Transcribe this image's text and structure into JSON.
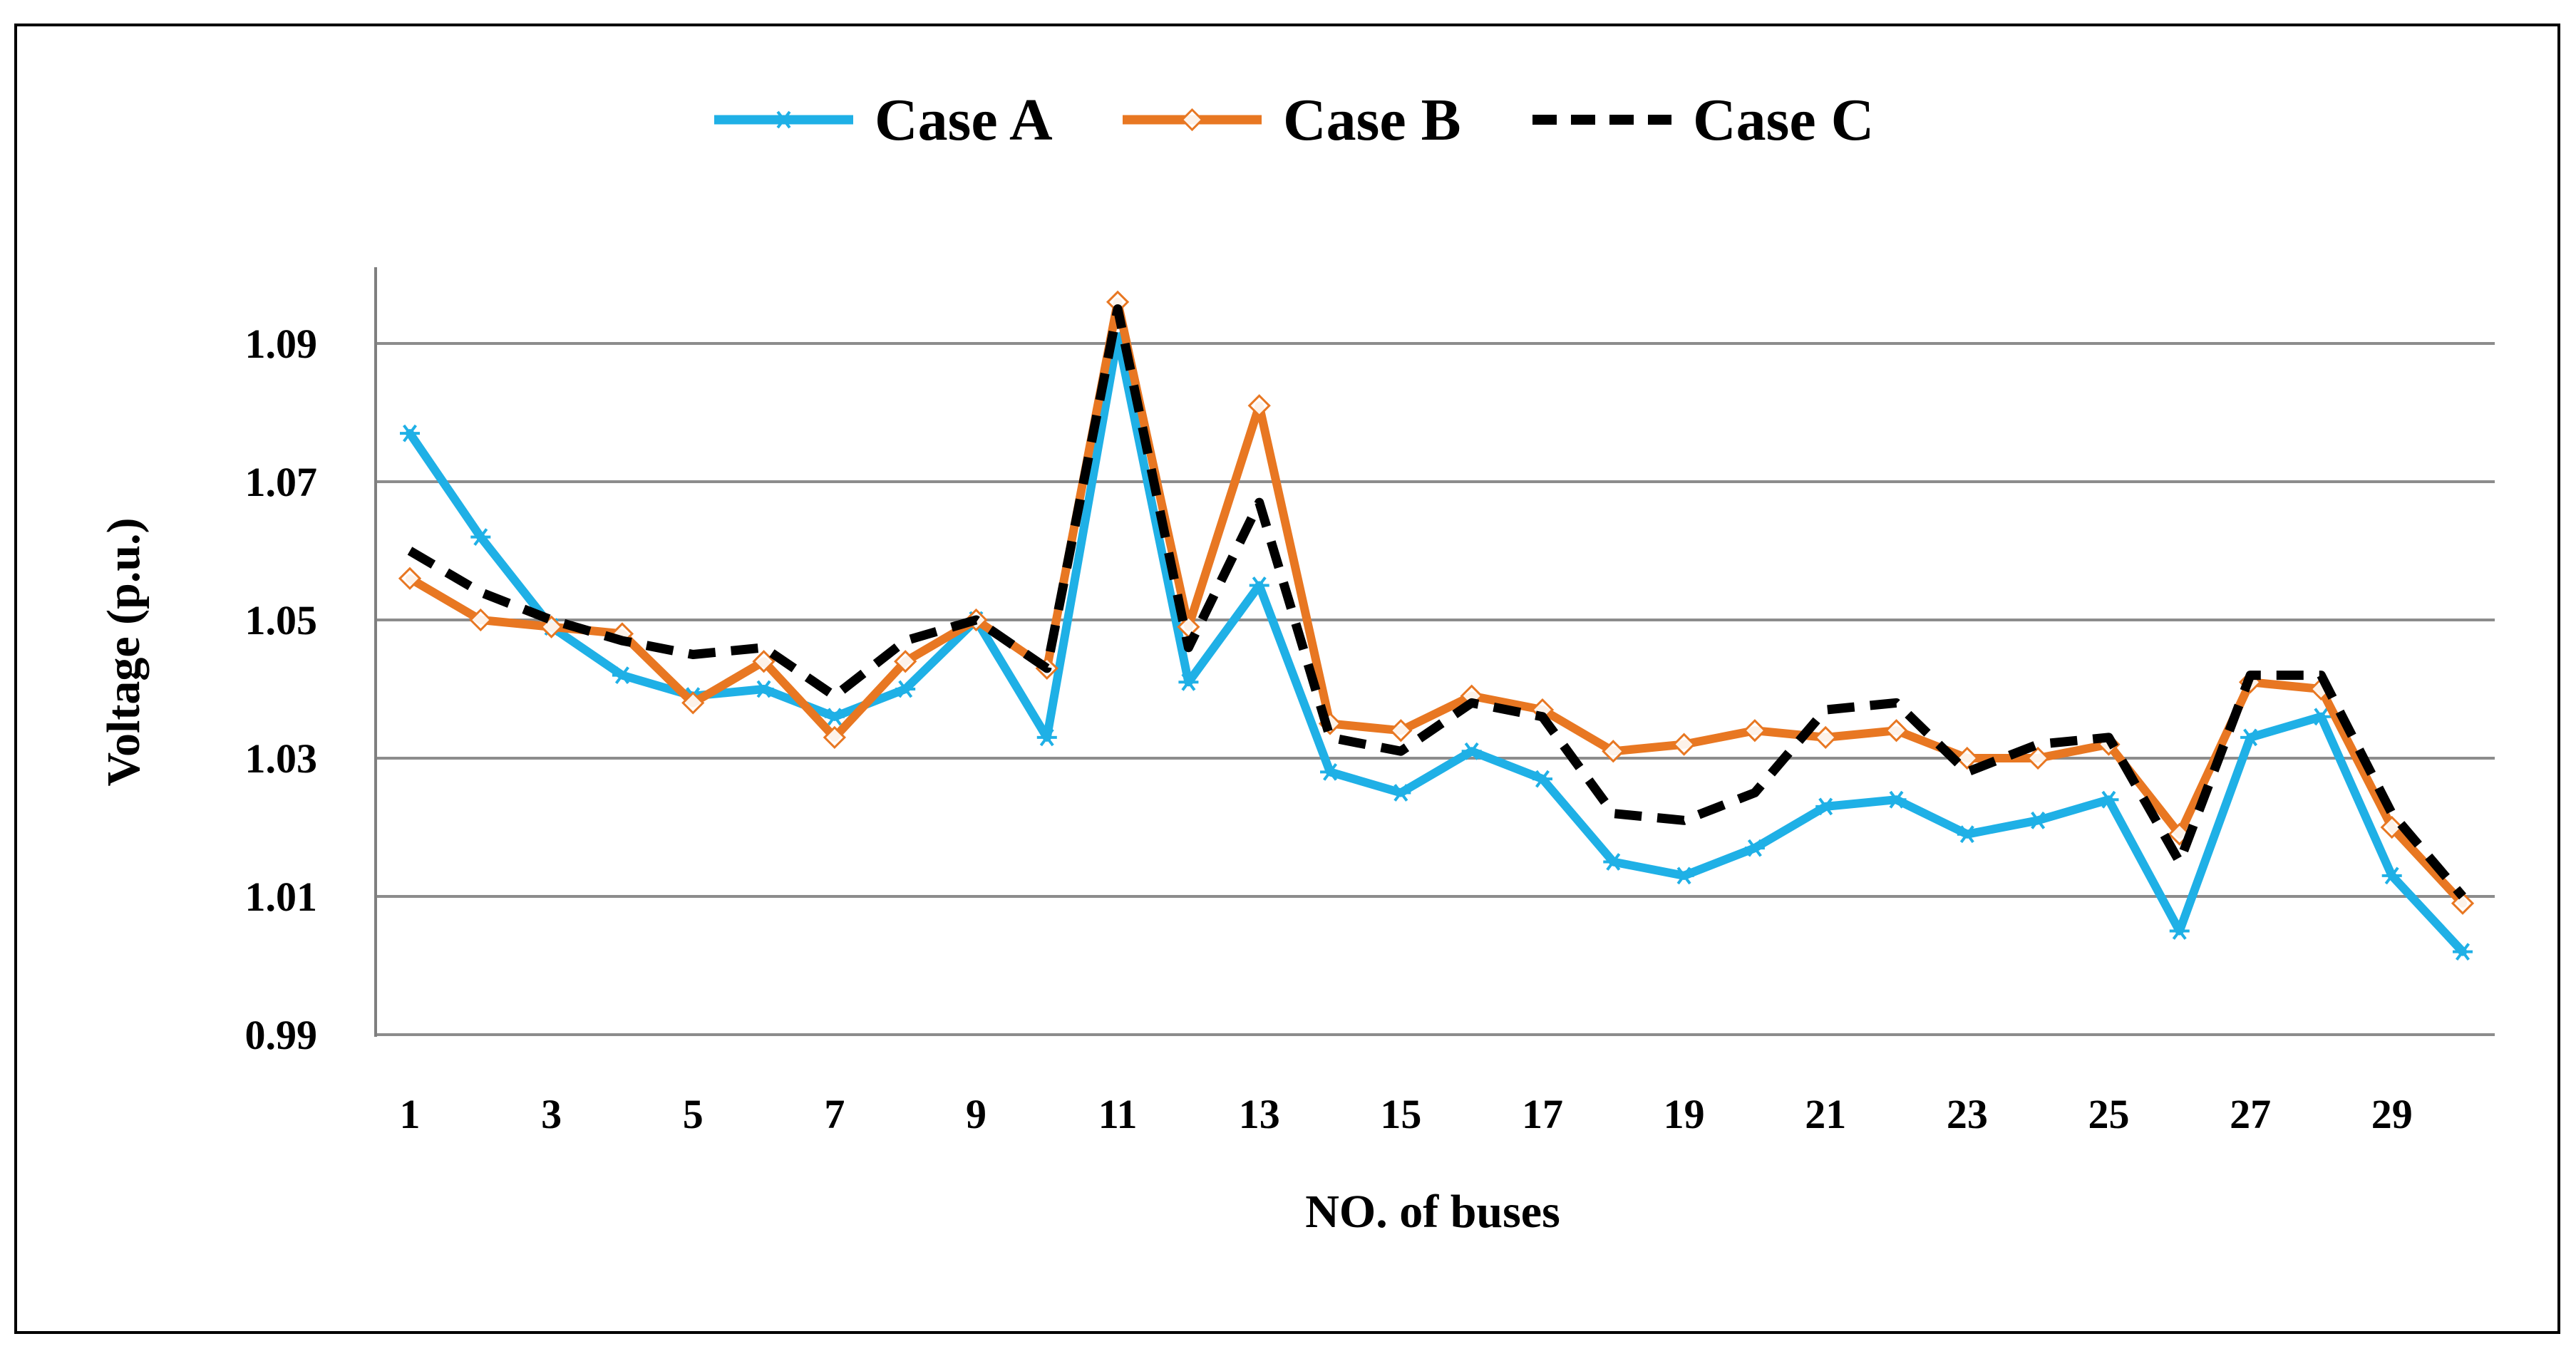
{
  "chart_data": {
    "type": "line",
    "title": "",
    "xlabel": "NO. of buses",
    "ylabel": "Voltage (p.u.)",
    "x": [
      1,
      2,
      3,
      4,
      5,
      6,
      7,
      8,
      9,
      10,
      11,
      12,
      13,
      14,
      15,
      16,
      17,
      18,
      19,
      20,
      21,
      22,
      23,
      24,
      25,
      26,
      27,
      28,
      29,
      30
    ],
    "x_tick_labels": [
      "1",
      "3",
      "5",
      "7",
      "9",
      "11",
      "13",
      "15",
      "17",
      "19",
      "21",
      "23",
      "25",
      "27",
      "29"
    ],
    "y_tick_labels": [
      "0.99",
      "1.01",
      "1.03",
      "1.05",
      "1.07",
      "1.09"
    ],
    "y_ticks": [
      0.99,
      1.01,
      1.03,
      1.05,
      1.07,
      1.09
    ],
    "ylim": [
      0.99,
      1.1
    ],
    "grid": true,
    "legend_position": "top-center",
    "series": [
      {
        "name": "Case A",
        "color": "#1fb0e6",
        "marker": "asterisk",
        "dash": "solid",
        "values": [
          1.077,
          1.062,
          1.049,
          1.042,
          1.039,
          1.04,
          1.036,
          1.04,
          1.05,
          1.033,
          1.091,
          1.041,
          1.055,
          1.028,
          1.025,
          1.031,
          1.027,
          1.015,
          1.013,
          1.017,
          1.023,
          1.024,
          1.019,
          1.021,
          1.024,
          1.005,
          1.033,
          1.036,
          1.013,
          1.002
        ]
      },
      {
        "name": "Case B",
        "color": "#e87722",
        "marker": "diamond",
        "dash": "solid",
        "values": [
          1.056,
          1.05,
          1.049,
          1.048,
          1.038,
          1.044,
          1.033,
          1.044,
          1.05,
          1.043,
          1.096,
          1.049,
          1.081,
          1.035,
          1.034,
          1.039,
          1.037,
          1.031,
          1.032,
          1.034,
          1.033,
          1.034,
          1.03,
          1.03,
          1.032,
          1.019,
          1.041,
          1.04,
          1.02,
          1.009
        ]
      },
      {
        "name": "Case C",
        "color": "#000000",
        "marker": "none",
        "dash": "dashed",
        "values": [
          1.06,
          1.054,
          1.05,
          1.047,
          1.045,
          1.046,
          1.039,
          1.047,
          1.05,
          1.043,
          1.095,
          1.046,
          1.067,
          1.033,
          1.031,
          1.038,
          1.036,
          1.022,
          1.021,
          1.025,
          1.037,
          1.038,
          1.028,
          1.032,
          1.033,
          1.015,
          1.042,
          1.042,
          1.022,
          1.01
        ]
      }
    ]
  }
}
